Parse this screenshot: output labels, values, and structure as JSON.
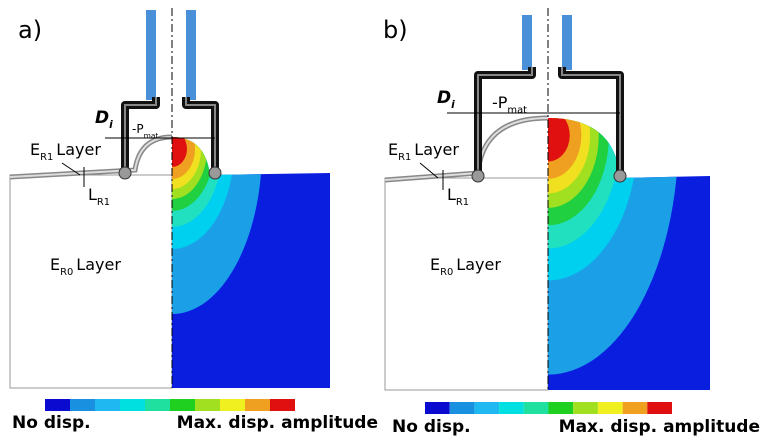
{
  "panels": [
    {
      "label": "a)",
      "diameter": {
        "text": "D",
        "sub": "i"
      },
      "pressure": {
        "text": "-P",
        "sub": "mat"
      },
      "top_layer": {
        "text": "E",
        "sub": "R1",
        "suffix": "Layer"
      },
      "thickness": {
        "text": "L",
        "sub": "R1"
      },
      "base_layer": {
        "text": "E",
        "sub": "R0",
        "suffix": "Layer"
      },
      "legend": {
        "min": "No disp.",
        "max": "Max. disp. amplitude"
      }
    },
    {
      "label": "b)",
      "diameter": {
        "text": "D",
        "sub": "i"
      },
      "pressure": {
        "text": "-P",
        "sub": "mat"
      },
      "top_layer": {
        "text": "E",
        "sub": "R1",
        "suffix": "Layer"
      },
      "thickness": {
        "text": "L",
        "sub": "R1"
      },
      "base_layer": {
        "text": "E",
        "sub": "R0",
        "suffix": "Layer"
      },
      "legend": {
        "min": "No disp.",
        "max": "Max. disp. amplitude"
      }
    }
  ]
}
